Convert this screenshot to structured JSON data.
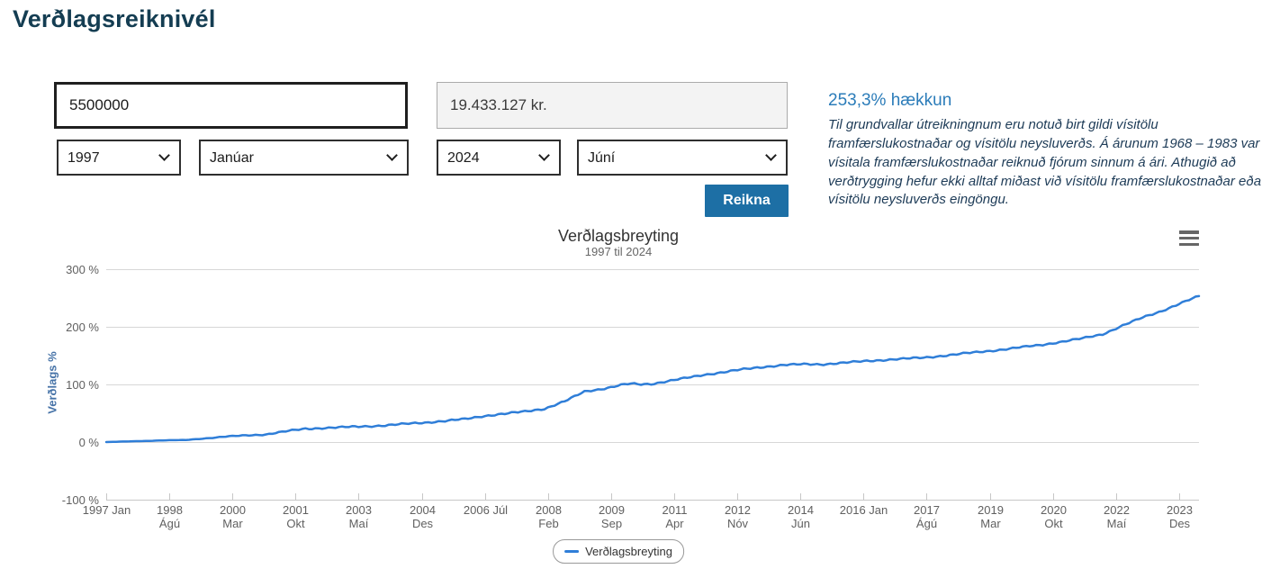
{
  "page": {
    "title": "Verðlagsreiknivél"
  },
  "form": {
    "amount_value": "5500000",
    "result_value": "19.433.127 kr.",
    "from_year": "1997",
    "from_month": "Janúar",
    "to_year": "2024",
    "to_month": "Júní",
    "calculate_label": "Reikna"
  },
  "summary": {
    "headline": "253,3% hækkun",
    "note": "Til grundvallar útreikningnum eru notuð birt gildi vísitölu framfærslukostnaðar og vísitölu neysluverðs. Á árunum 1968 – 1983 var vísitala framfærslukostnaðar reiknuð fjórum sinnum á ári. Athugið að verðtrygging hefur ekki alltaf miðast við vísitölu framfærslukostnaðar eða vísitölu neysluverðs eingöngu."
  },
  "icons": {
    "menu": "hamburger-icon",
    "select_arrow": "chevron-down-icon"
  },
  "colors": {
    "accent_blue": "#1d6fa5",
    "headline_blue": "#2b7cb9",
    "title_navy": "#143d52",
    "series_blue": "#2f7ed8",
    "grid_gray": "#d7d7d7",
    "axis_label_gray": "#606060",
    "yaxis_title_blue": "#4572a7"
  },
  "chart_data": {
    "type": "line",
    "title": "Verðlagsbreyting",
    "subtitle": "1997 til 2024",
    "ylabel": "Verðlags %",
    "xlabel": "",
    "ylim": [
      -100,
      300
    ],
    "xlim": [
      1997,
      2024.417
    ],
    "grid": "horizontal",
    "legend_position": "bottom-center",
    "legend_label": "Verðlagsbreyting",
    "yticks": [
      {
        "value": 300,
        "label": "300 %"
      },
      {
        "value": 200,
        "label": "200 %"
      },
      {
        "value": 100,
        "label": "100 %"
      },
      {
        "value": 0,
        "label": "0 %"
      },
      {
        "value": -100,
        "label": "-100 %"
      }
    ],
    "xticks": [
      {
        "x": 1997.0,
        "line1": "1997 Jan",
        "line2": ""
      },
      {
        "x": 1998.583,
        "line1": "1998",
        "line2": "Ágú"
      },
      {
        "x": 2000.167,
        "line1": "2000",
        "line2": "Mar"
      },
      {
        "x": 2001.75,
        "line1": "2001",
        "line2": "Okt"
      },
      {
        "x": 2003.333,
        "line1": "2003",
        "line2": "Maí"
      },
      {
        "x": 2004.917,
        "line1": "2004",
        "line2": "Des"
      },
      {
        "x": 2006.5,
        "line1": "2006 Júl",
        "line2": ""
      },
      {
        "x": 2008.083,
        "line1": "2008",
        "line2": "Feb"
      },
      {
        "x": 2009.667,
        "line1": "2009",
        "line2": "Sep"
      },
      {
        "x": 2011.25,
        "line1": "2011",
        "line2": "Apr"
      },
      {
        "x": 2012.833,
        "line1": "2012",
        "line2": "Nóv"
      },
      {
        "x": 2014.417,
        "line1": "2014",
        "line2": "Jún"
      },
      {
        "x": 2016.0,
        "line1": "2016 Jan",
        "line2": ""
      },
      {
        "x": 2017.583,
        "line1": "2017",
        "line2": "Ágú"
      },
      {
        "x": 2019.167,
        "line1": "2019",
        "line2": "Mar"
      },
      {
        "x": 2020.75,
        "line1": "2020",
        "line2": "Okt"
      },
      {
        "x": 2022.333,
        "line1": "2022",
        "line2": "Maí"
      },
      {
        "x": 2023.917,
        "line1": "2023",
        "line2": "Des"
      }
    ],
    "series": [
      {
        "name": "Verðlagsbreyting",
        "color": "#2f7ed8",
        "points": [
          [
            1997.0,
            0
          ],
          [
            1997.5,
            1.0
          ],
          [
            1998.0,
            2.0
          ],
          [
            1998.5,
            3.0
          ],
          [
            1999.0,
            3.6
          ],
          [
            1999.5,
            6.5
          ],
          [
            2000.0,
            9.5
          ],
          [
            2000.5,
            11.5
          ],
          [
            2001.0,
            13.2
          ],
          [
            2001.5,
            18.5
          ],
          [
            2002.0,
            23.1
          ],
          [
            2002.5,
            24.5
          ],
          [
            2003.0,
            25.9
          ],
          [
            2003.5,
            27.3
          ],
          [
            2004.0,
            28.8
          ],
          [
            2004.5,
            31.5
          ],
          [
            2005.0,
            33.9
          ],
          [
            2005.5,
            36.5
          ],
          [
            2006.0,
            39.9
          ],
          [
            2006.5,
            45.5
          ],
          [
            2007.0,
            49.1
          ],
          [
            2007.5,
            53.0
          ],
          [
            2008.0,
            57.9
          ],
          [
            2008.5,
            70.5
          ],
          [
            2009.0,
            87.6
          ],
          [
            2009.5,
            93.0
          ],
          [
            2010.0,
            99.9
          ],
          [
            2010.2,
            101.3
          ],
          [
            2010.4,
            100.0
          ],
          [
            2010.7,
            101.0
          ],
          [
            2011.0,
            104.7
          ],
          [
            2011.5,
            110.5
          ],
          [
            2012.0,
            116.6
          ],
          [
            2012.5,
            121.5
          ],
          [
            2013.0,
            126.4
          ],
          [
            2013.5,
            130.5
          ],
          [
            2014.0,
            133.8
          ],
          [
            2014.5,
            135.0
          ],
          [
            2015.0,
            135.0
          ],
          [
            2015.5,
            137.5
          ],
          [
            2016.0,
            140.2
          ],
          [
            2016.5,
            142.5
          ],
          [
            2017.0,
            144.5
          ],
          [
            2017.5,
            146.5
          ],
          [
            2018.0,
            149.7
          ],
          [
            2018.5,
            153.5
          ],
          [
            2019.0,
            157.1
          ],
          [
            2019.5,
            160.5
          ],
          [
            2020.0,
            164.9
          ],
          [
            2020.5,
            169.0
          ],
          [
            2021.0,
            174.3
          ],
          [
            2021.5,
            180.0
          ],
          [
            2022.0,
            187.2
          ],
          [
            2022.5,
            202.0
          ],
          [
            2023.0,
            216.0
          ],
          [
            2023.5,
            228.0
          ],
          [
            2024.0,
            242.0
          ],
          [
            2024.417,
            253.3
          ]
        ]
      }
    ]
  }
}
